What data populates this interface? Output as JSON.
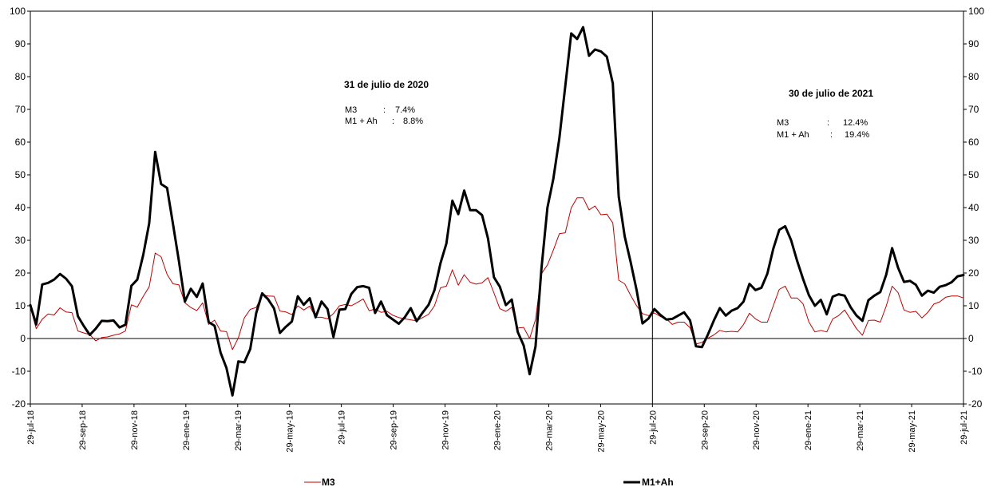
{
  "chart_data": {
    "type": "line",
    "ylim": [
      -20,
      100
    ],
    "yticks": [
      -20,
      -10,
      0,
      10,
      20,
      30,
      40,
      50,
      60,
      70,
      80,
      90,
      100
    ],
    "grid": false,
    "legend_position": "bottom",
    "x_tick_labels": [
      "29-jul-18",
      "29-sep-18",
      "29-nov-18",
      "29-ene-19",
      "29-mar-19",
      "29-may-19",
      "29-jul-19",
      "29-sep-19",
      "29-nov-19",
      "29-ene-20",
      "29-mar-20",
      "29-may-20",
      "29-jul-20",
      "29-sep-20",
      "29-nov-20",
      "29-ene-21",
      "29-mar-21",
      "29-may-21",
      "29-jul-21"
    ],
    "vertical_marker": "29-jul-20",
    "series": [
      {
        "name": "M3",
        "color": "#c00000",
        "width": 1,
        "values": [
          9.6,
          3.0,
          5.9,
          7.5,
          7.2,
          9.4,
          8.1,
          7.9,
          2.3,
          1.7,
          1.2,
          -0.7,
          0.3,
          0.5,
          1.0,
          1.4,
          2.3,
          10.3,
          9.6,
          12.9,
          15.8,
          26.1,
          25.0,
          19.6,
          16.7,
          16.4,
          10.9,
          9.5,
          8.5,
          10.9,
          4.3,
          5.6,
          2.3,
          2.1,
          -3.4,
          0.2,
          6.3,
          8.9,
          9.5,
          13.3,
          13.0,
          12.9,
          8.4,
          8.1,
          7.3,
          10.0,
          8.7,
          9.9,
          6.5,
          6.5,
          6.0,
          7.6,
          10.0,
          10.4,
          10.0,
          11.0,
          12.1,
          8.5,
          9.0,
          8.0,
          8.3,
          7.1,
          6.4,
          6.0,
          5.7,
          5.4,
          6.4,
          7.4,
          10.0,
          15.5,
          16.0,
          21.0,
          16.3,
          19.5,
          17.2,
          16.6,
          17.0,
          18.6,
          13.9,
          9.1,
          8.3,
          9.5,
          3.2,
          3.4,
          0.0,
          5.8,
          19.8,
          22.5,
          27.0,
          32.0,
          32.3,
          39.9,
          43.0,
          43.0,
          39.3,
          40.5,
          37.8,
          38.0,
          35.3,
          17.8,
          16.7,
          13.2,
          10.0,
          7.6,
          7.0,
          7.8,
          6.7,
          6.0,
          4.3,
          5.0,
          5.0,
          3.3,
          -1.7,
          -1.2,
          0.1,
          1.1,
          2.5,
          2.0,
          2.2,
          2.0,
          4.3,
          7.7,
          6.0,
          5.0,
          5.0,
          10.0,
          15.0,
          16.0,
          12.4,
          12.4,
          10.6,
          5.0,
          2.0,
          2.5,
          2.0,
          6.0,
          7.0,
          8.7,
          5.9,
          3.0,
          1.0,
          5.5,
          5.6,
          5.0,
          9.9,
          16.0,
          14.0,
          8.7,
          8.0,
          8.3,
          6.3,
          8.0,
          10.5,
          11.2,
          12.6,
          13.0,
          13.0,
          12.4
        ]
      },
      {
        "name": "M1+Ah",
        "color": "#000000",
        "width": 3,
        "values": [
          10.2,
          4.3,
          16.5,
          17.0,
          18.0,
          19.7,
          18.3,
          16.0,
          6.8,
          3.8,
          1.1,
          3.0,
          5.4,
          5.3,
          5.5,
          3.4,
          4.2,
          16.1,
          18.0,
          25.6,
          35.2,
          57.0,
          47.2,
          46.0,
          35.0,
          23.7,
          11.3,
          15.2,
          12.7,
          16.8,
          5.0,
          3.9,
          -4.3,
          -9.0,
          -17.4,
          -7.0,
          -7.3,
          -3.2,
          7.7,
          13.8,
          12.0,
          9.2,
          1.7,
          3.6,
          5.2,
          12.9,
          10.3,
          12.3,
          6.5,
          11.3,
          9.0,
          0.5,
          8.8,
          9.0,
          13.6,
          15.7,
          16.0,
          15.5,
          7.8,
          11.3,
          7.1,
          5.8,
          4.5,
          6.5,
          9.3,
          5.3,
          7.9,
          10.3,
          14.8,
          23.0,
          29.0,
          42.1,
          38.0,
          45.2,
          39.2,
          39.2,
          37.7,
          30.6,
          18.7,
          15.8,
          10.2,
          11.9,
          2.0,
          -2.1,
          -10.9,
          -2.4,
          21.4,
          40.0,
          48.8,
          61.1,
          77.0,
          93.2,
          91.5,
          95.1,
          86.4,
          88.3,
          87.7,
          86.1,
          77.9,
          43.4,
          31.2,
          23.4,
          14.8,
          4.6,
          6.1,
          9.0,
          7.2,
          5.8,
          6.0,
          7.0,
          8.0,
          5.5,
          -2.4,
          -2.6,
          1.2,
          5.5,
          9.3,
          7.0,
          8.5,
          9.3,
          11.3,
          16.7,
          14.8,
          15.5,
          19.8,
          27.4,
          33.2,
          34.3,
          30.0,
          23.8,
          18.2,
          13.2,
          10.0,
          11.8,
          7.4,
          12.8,
          13.5,
          13.1,
          9.6,
          7.0,
          5.4,
          11.7,
          13.1,
          14.2,
          19.5,
          27.6,
          21.6,
          17.3,
          17.6,
          16.4,
          13.1,
          14.6,
          14.0,
          15.8,
          16.3,
          17.2,
          19.0,
          19.4
        ]
      }
    ],
    "annotations": [
      {
        "title": "31 de julio de 2020",
        "rows": [
          {
            "label": "M3",
            "sep": ":",
            "value": "7.4%"
          },
          {
            "label": "M1 + Ah",
            "sep": ":",
            "value": "8.8%"
          }
        ]
      },
      {
        "title": "30 de julio de 2021",
        "rows": [
          {
            "label": "M3",
            "sep": ":",
            "value": "12.4%"
          },
          {
            "label": "M1 + Ah",
            "sep": ":",
            "value": "19.4%"
          }
        ]
      }
    ]
  }
}
